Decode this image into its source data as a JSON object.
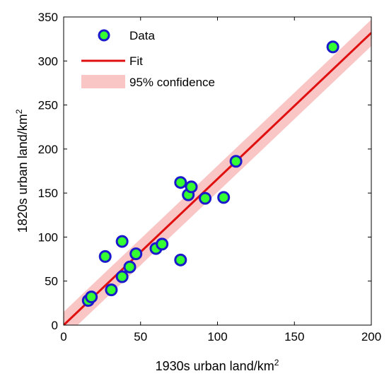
{
  "chart_data": {
    "type": "scatter",
    "xlabel": "1930s urban land/km",
    "xlabel_sup": "2",
    "ylabel": "1820s urban land/km",
    "ylabel_sup": "2",
    "xlim": [
      0,
      200
    ],
    "ylim": [
      0,
      350
    ],
    "xticks": [
      0,
      50,
      100,
      150,
      200
    ],
    "yticks": [
      0,
      50,
      100,
      150,
      200,
      250,
      300,
      350
    ],
    "xtick_labels": [
      "0",
      "50",
      "100",
      "150",
      "200"
    ],
    "ytick_labels": [
      "0",
      "50",
      "100",
      "150",
      "200",
      "250",
      "300",
      "350"
    ],
    "grid": false,
    "legend_position": "top-left",
    "legend": {
      "data_label": "Data",
      "fit_label": "Fit",
      "ci_label": "95% confidence"
    },
    "points": [
      {
        "x": 16,
        "y": 28
      },
      {
        "x": 18,
        "y": 32
      },
      {
        "x": 27,
        "y": 78
      },
      {
        "x": 31,
        "y": 40
      },
      {
        "x": 38,
        "y": 95
      },
      {
        "x": 38,
        "y": 55
      },
      {
        "x": 43,
        "y": 66
      },
      {
        "x": 47,
        "y": 81
      },
      {
        "x": 60,
        "y": 87
      },
      {
        "x": 64,
        "y": 92
      },
      {
        "x": 76,
        "y": 74
      },
      {
        "x": 76,
        "y": 162
      },
      {
        "x": 81,
        "y": 148
      },
      {
        "x": 83,
        "y": 157
      },
      {
        "x": 92,
        "y": 144
      },
      {
        "x": 104,
        "y": 145
      },
      {
        "x": 112,
        "y": 186
      },
      {
        "x": 175,
        "y": 316
      }
    ],
    "fit": {
      "slope": 1.66,
      "intercept": 0,
      "ci_halfwidth": 15
    },
    "colors": {
      "marker_fill": "#33ff33",
      "marker_edge": "#1a1acc",
      "fit_line": "#e01010",
      "confidence_band": "#f9c5c5",
      "axis": "#000000"
    }
  }
}
